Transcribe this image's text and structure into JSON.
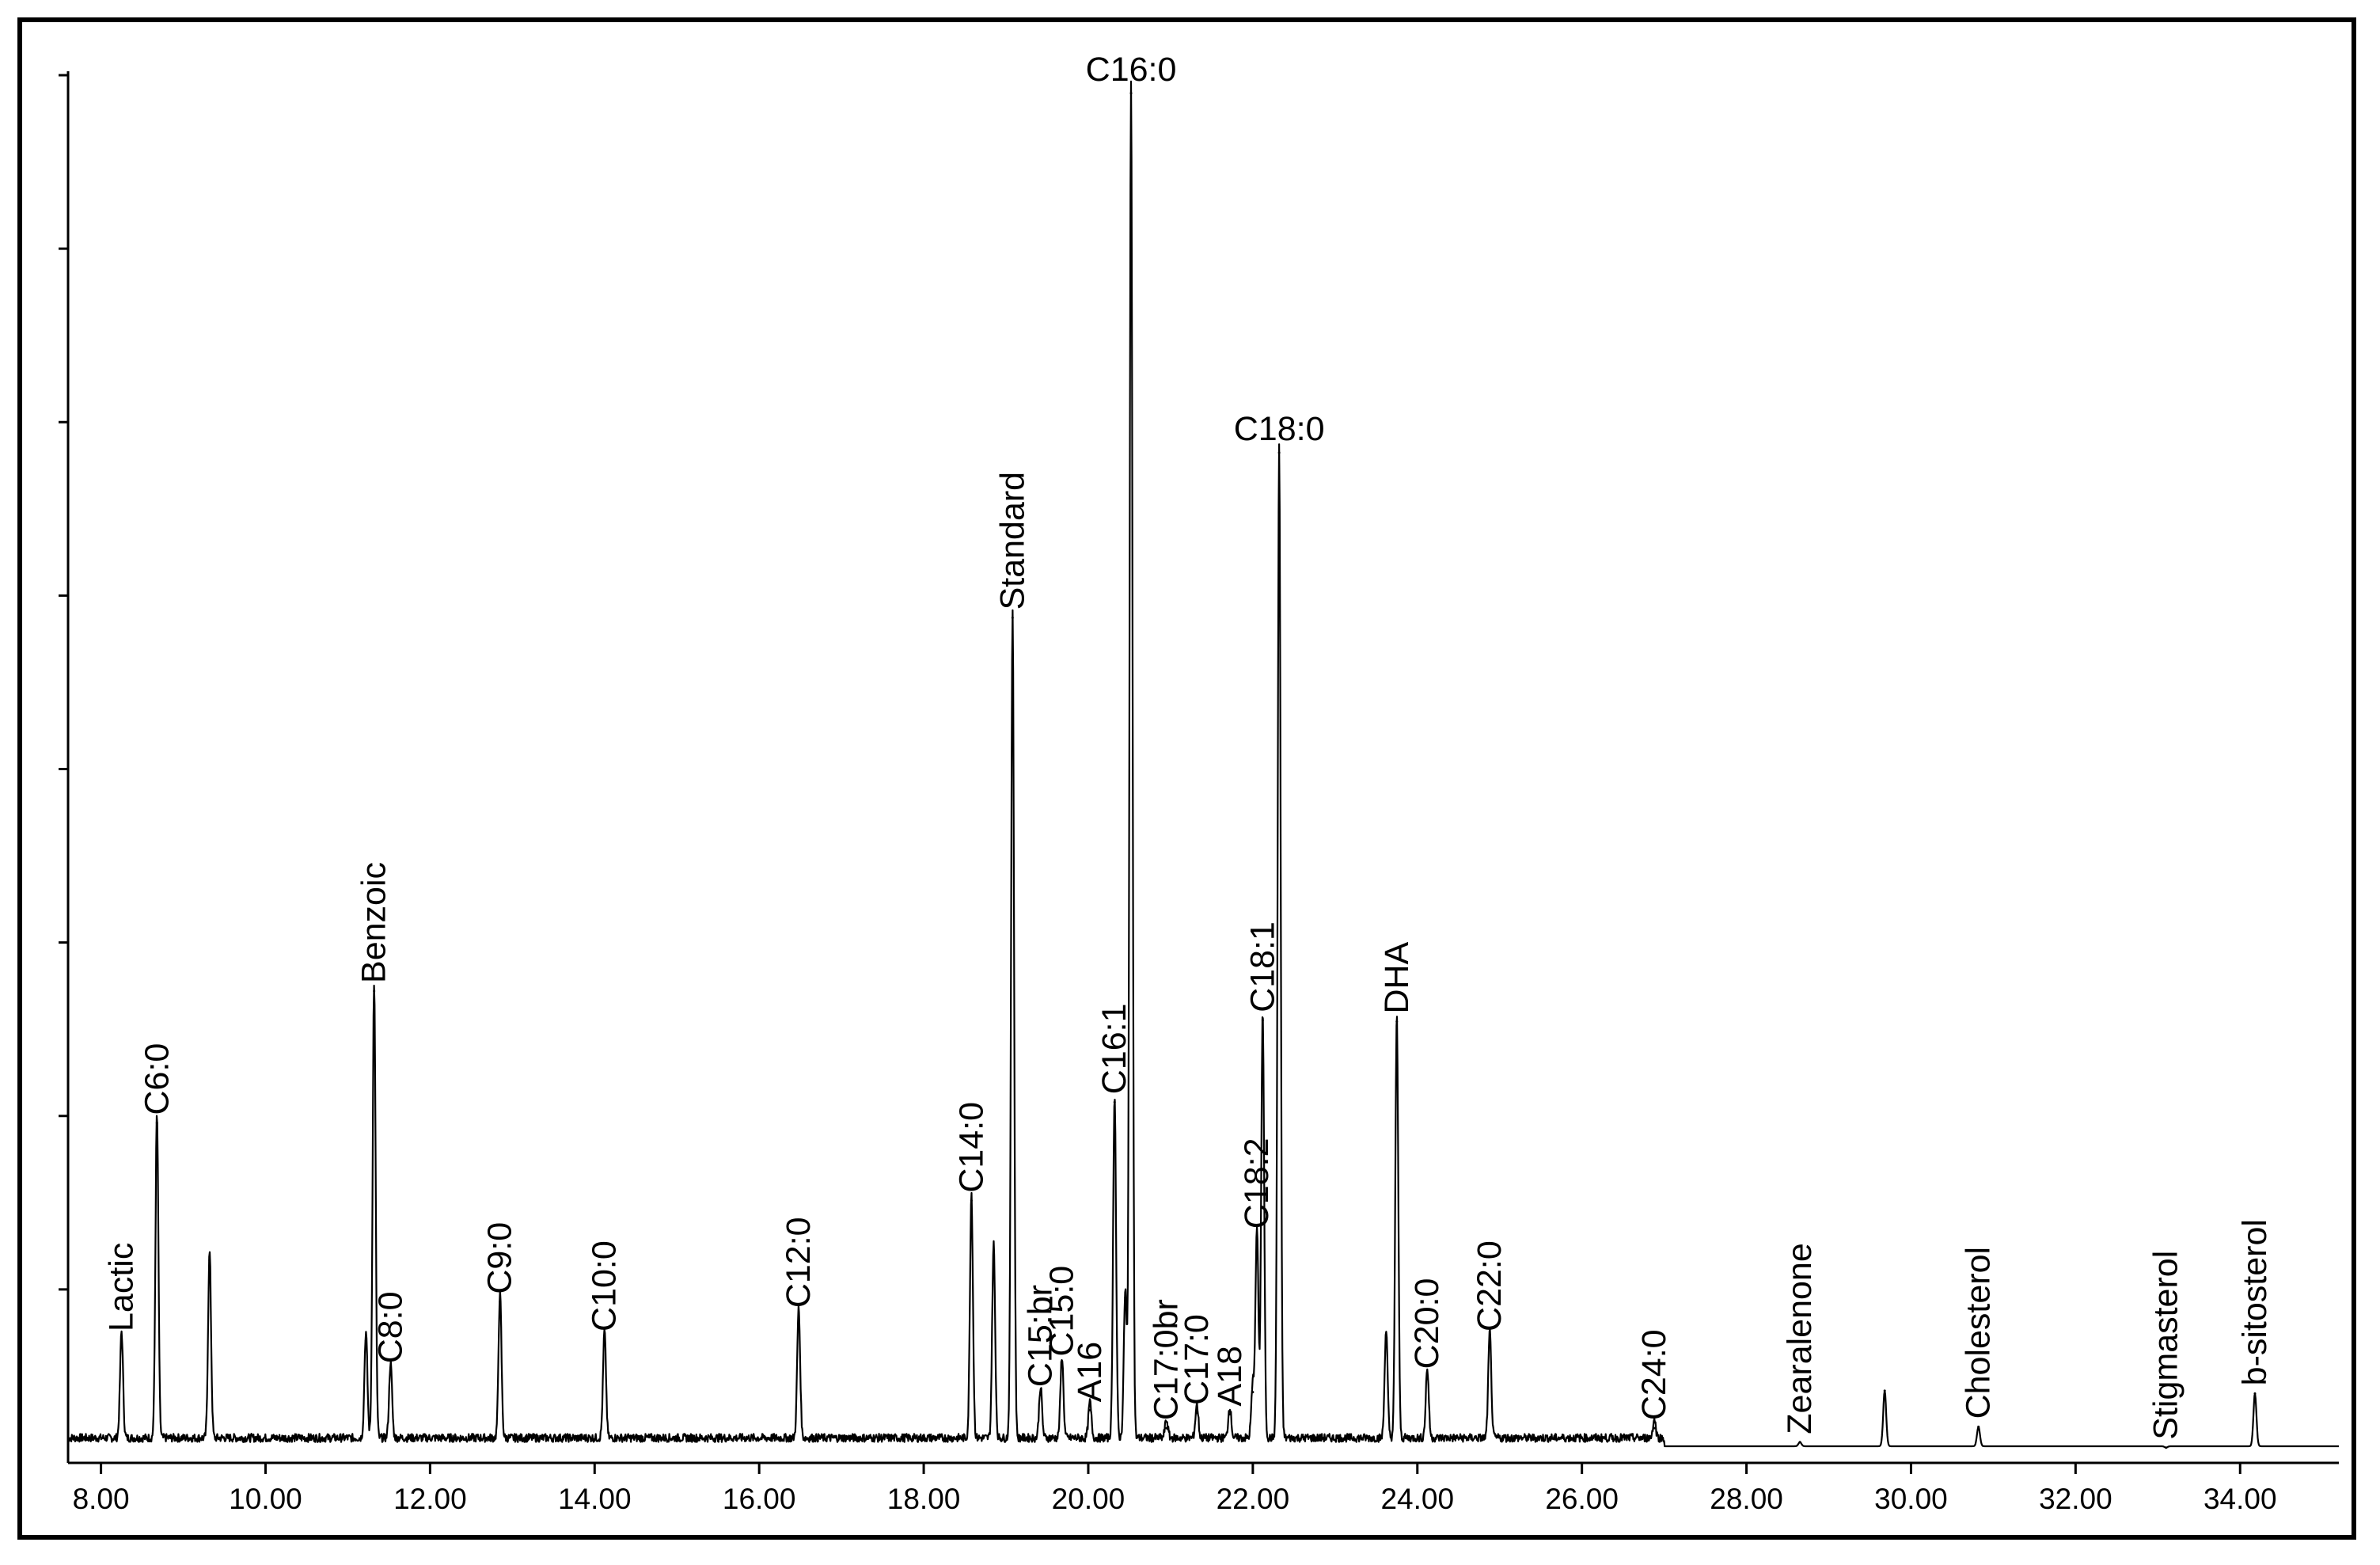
{
  "chart_data": {
    "type": "line",
    "title": "",
    "xlabel": "",
    "ylabel": "",
    "xlim": [
      7.6,
      35.2
    ],
    "ylim": [
      0,
      100
    ],
    "grid": false,
    "legend": "none",
    "x_ticks": [
      "8.00",
      "10.00",
      "12.00",
      "14.00",
      "16.00",
      "18.00",
      "20.00",
      "22.00",
      "24.00",
      "26.00",
      "28.00",
      "30.00",
      "32.00",
      "34.00"
    ],
    "x_tick_values": [
      8,
      10,
      12,
      14,
      16,
      18,
      20,
      22,
      24,
      26,
      28,
      30,
      32,
      34
    ],
    "y_tick_values": [
      12.5,
      25,
      37.5,
      50,
      62.5,
      75,
      87.5,
      100
    ],
    "baseline": 1.2,
    "series": [
      {
        "values_description": "total ion chromatogram",
        "peaks": [
          {
            "x": 8.25,
            "y": 8.9,
            "label": "Lactic"
          },
          {
            "x": 8.68,
            "y": 24.5,
            "label": "C6:0"
          },
          {
            "x": 11.32,
            "y": 34.0,
            "label": "Benzoic"
          },
          {
            "x": 11.52,
            "y": 6.6,
            "label": "C8:0"
          },
          {
            "x": 12.85,
            "y": 11.6,
            "label": "C9:0"
          },
          {
            "x": 14.12,
            "y": 8.9,
            "label": "C10:0"
          },
          {
            "x": 16.48,
            "y": 10.6,
            "label": "C12:0"
          },
          {
            "x": 18.58,
            "y": 18.9,
            "label": "C14:0"
          },
          {
            "x": 19.08,
            "y": 60.9,
            "label": "Standard"
          },
          {
            "x": 19.42,
            "y": 4.9,
            "label": "C15:br"
          },
          {
            "x": 19.68,
            "y": 7.1,
            "label": "C15:0"
          },
          {
            "x": 20.02,
            "y": 3.8,
            "label": "A16"
          },
          {
            "x": 20.32,
            "y": 26.0,
            "label": "C16:1"
          },
          {
            "x": 20.52,
            "y": 98.7,
            "label": "C16:0"
          },
          {
            "x": 20.95,
            "y": 2.5,
            "label": "C17:0br"
          },
          {
            "x": 21.32,
            "y": 3.6,
            "label": "C17:0"
          },
          {
            "x": 21.72,
            "y": 3.5,
            "label": "A18"
          },
          {
            "x": 22.05,
            "y": 16.3,
            "label": "C18:2"
          },
          {
            "x": 22.12,
            "y": 31.9,
            "label": "C18:1"
          },
          {
            "x": 22.32,
            "y": 72.8,
            "label": "C18:0"
          },
          {
            "x": 23.75,
            "y": 31.8,
            "label": "DHA"
          },
          {
            "x": 24.12,
            "y": 6.2,
            "label": "C20:0"
          },
          {
            "x": 24.88,
            "y": 8.9,
            "label": "C22:0"
          },
          {
            "x": 26.88,
            "y": 2.5,
            "label": "C24:0"
          },
          {
            "x": 28.65,
            "y": 1.5,
            "label": "Zearalenone"
          },
          {
            "x": 30.82,
            "y": 2.6,
            "label": "Cholesterol"
          },
          {
            "x": 33.1,
            "y": 1.1,
            "label": "Stigmasterol"
          },
          {
            "x": 34.18,
            "y": 5.0,
            "label": "b-sitosterol"
          },
          {
            "x": 9.32,
            "y": 14.6,
            "label": ""
          },
          {
            "x": 11.22,
            "y": 8.8,
            "label": ""
          },
          {
            "x": 18.85,
            "y": 15.2,
            "label": ""
          },
          {
            "x": 20.45,
            "y": 11.9,
            "label": ""
          },
          {
            "x": 22.0,
            "y": 5.1,
            "label": ""
          },
          {
            "x": 23.62,
            "y": 9.0,
            "label": ""
          },
          {
            "x": 29.68,
            "y": 5.2,
            "label": ""
          }
        ]
      }
    ]
  }
}
